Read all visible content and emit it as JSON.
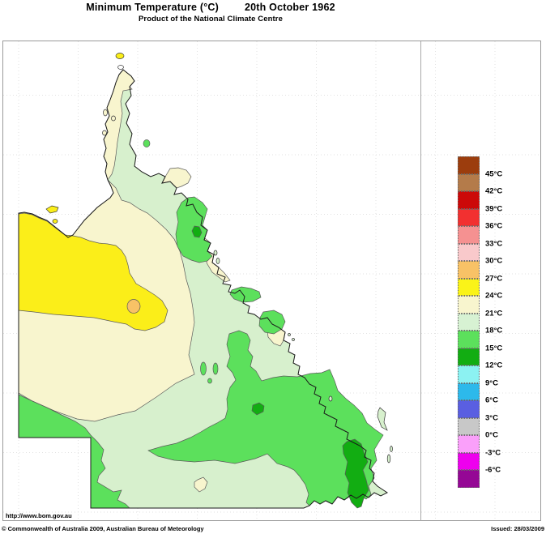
{
  "header": {
    "title": "Minimum Temperature (°C)",
    "date": "20th October 1962",
    "subtitle": "Product of the National Climate Centre"
  },
  "footer": {
    "url": "http://www.bom.gov.au",
    "copyright": "© Commonwealth of Australia 2009, Australian Bureau of Meteorology",
    "issued": "Issued: 28/03/2009"
  },
  "legend": {
    "unit": "°C",
    "bands": [
      {
        "color": "#9C3D0D",
        "label": "45°C"
      },
      {
        "color": "#B47B4A",
        "label": "42°C"
      },
      {
        "color": "#CC0909",
        "label": "39°C"
      },
      {
        "color": "#F23030",
        "label": "36°C"
      },
      {
        "color": "#F59191",
        "label": "33°C"
      },
      {
        "color": "#F9C9CB",
        "label": "30°C"
      },
      {
        "color": "#F8C266",
        "label": "27°C"
      },
      {
        "color": "#FAF318",
        "label": "24°C"
      },
      {
        "color": "#F8F5CE",
        "label": "21°C"
      },
      {
        "color": "#D7F2D3",
        "label": "18°C"
      },
      {
        "color": "#5CE05C",
        "label": "15°C"
      },
      {
        "color": "#12AD12",
        "label": "12°C"
      },
      {
        "color": "#8CF2F2",
        "label": "9°C"
      },
      {
        "color": "#2DB9EB",
        "label": "6°C"
      },
      {
        "color": "#5A5FE1",
        "label": "3°C"
      },
      {
        "color": "#C8C8C8",
        "label": "0°C"
      },
      {
        "color": "#FAA0FA",
        "label": "-3°C"
      },
      {
        "color": "#EE00EE",
        "label": "-6°C"
      },
      {
        "color": "#950795",
        "label": ""
      }
    ]
  },
  "map": {
    "state": "Queensland",
    "sea_color": "#FFFFFF",
    "band_colors": {
      "b12_15": "#12AD12",
      "b15_18": "#5CE05C",
      "b18_21": "#D7F0CD",
      "b21_24": "#F8F5CE",
      "b24_27": "#FBEE19",
      "b27_30": "#F8C266"
    },
    "regions": [
      {
        "name": "state-base",
        "band": "18-21°C"
      },
      {
        "name": "cape-york-tip",
        "band": "21-24°C"
      },
      {
        "name": "gulf-country",
        "band": "21-24°C"
      },
      {
        "name": "northwest-inland",
        "band": "24-27°C"
      },
      {
        "name": "northwest-core",
        "band": "27-30°C"
      },
      {
        "name": "atherton-tableland",
        "band": "15-18°C"
      },
      {
        "name": "atherton-core",
        "band": "12-15°C"
      },
      {
        "name": "coastal-patches",
        "band": "21-24°C"
      },
      {
        "name": "central-inland-hills",
        "band": "15-18°C"
      },
      {
        "name": "southeast-inland",
        "band": "15-18°C"
      },
      {
        "name": "southeast-core",
        "band": "12-15°C"
      },
      {
        "name": "granite-belt",
        "band": "12-15°C"
      },
      {
        "name": "southwest-border-strip",
        "band": "15-18°C"
      }
    ]
  }
}
